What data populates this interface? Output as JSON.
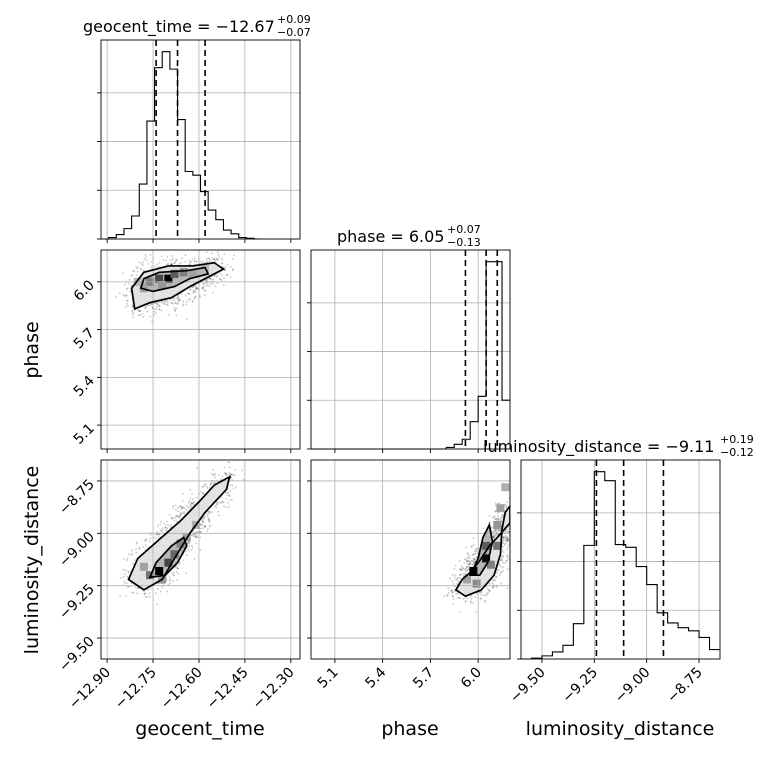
{
  "chart_data": {
    "type": "corner",
    "parameters": [
      {
        "name": "geocent_time",
        "axis_label": "geocent_time",
        "title_main": "geocent_time = −12.67",
        "title_plus": "+0.09",
        "title_minus": "−0.07",
        "range": [
          -12.92,
          -12.27
        ],
        "ticks": [
          -12.9,
          -12.75,
          -12.6,
          -12.45,
          -12.3
        ],
        "tick_labels": [
          "−12.90",
          "−12.75",
          "−12.60",
          "−12.45",
          "−12.30"
        ],
        "quantiles": [
          -12.74,
          -12.67,
          -12.58
        ],
        "hist_edges": [
          -12.92,
          -12.895,
          -12.87,
          -12.845,
          -12.82,
          -12.795,
          -12.77,
          -12.745,
          -12.72,
          -12.695,
          -12.67,
          -12.645,
          -12.62,
          -12.595,
          -12.57,
          -12.545,
          -12.52,
          -12.495,
          -12.47,
          -12.445,
          -12.42,
          -12.395
        ],
        "hist_counts": [
          0,
          4,
          12,
          28,
          62,
          148,
          318,
          462,
          505,
          458,
          322,
          182,
          172,
          128,
          78,
          52,
          24,
          14,
          4,
          2,
          0
        ]
      },
      {
        "name": "phase",
        "axis_label": "phase",
        "title_main": "phase = 6.05",
        "title_plus": "+0.07",
        "title_minus": "−0.13",
        "range": [
          4.95,
          6.2
        ],
        "ticks": [
          5.1,
          5.4,
          5.7,
          6.0
        ],
        "tick_labels": [
          "5.1",
          "5.4",
          "5.7",
          "6.0"
        ],
        "quantiles": [
          5.92,
          6.05,
          6.12
        ],
        "hist_edges": [
          4.95,
          5.0,
          5.05,
          5.1,
          5.15,
          5.2,
          5.25,
          5.3,
          5.35,
          5.4,
          5.45,
          5.5,
          5.55,
          5.6,
          5.65,
          5.7,
          5.75,
          5.8,
          5.85,
          5.9,
          5.95,
          6.0,
          6.05,
          6.1,
          6.15,
          6.2
        ],
        "hist_counts": [
          0,
          0,
          0,
          0,
          0,
          0,
          0,
          0,
          0,
          0,
          0,
          0,
          0,
          0,
          0,
          0,
          0,
          4,
          12,
          25,
          70,
          135,
          480,
          480,
          125
        ]
      },
      {
        "name": "luminosity_distance",
        "axis_label": "luminosity_distance",
        "title_main": "luminosity_distance = −9.11",
        "title_plus": "+0.19",
        "title_minus": "−0.12",
        "range": [
          -9.6,
          -8.65
        ],
        "ticks": [
          -9.5,
          -9.25,
          -9.0,
          -8.75
        ],
        "tick_labels": [
          "−9.50",
          "−9.25",
          "−9.00",
          "−8.75"
        ],
        "quantiles": [
          -9.24,
          -9.11,
          -8.92
        ],
        "hist_edges": [
          -9.6,
          -9.55,
          -9.5,
          -9.45,
          -9.4,
          -9.35,
          -9.3,
          -9.25,
          -9.2,
          -9.15,
          -9.1,
          -9.05,
          -9.0,
          -8.95,
          -8.9,
          -8.85,
          -8.8,
          -8.75,
          -8.7,
          -8.65
        ],
        "hist_counts": [
          0,
          2,
          8,
          18,
          35,
          90,
          290,
          478,
          455,
          292,
          285,
          236,
          190,
          118,
          92,
          80,
          72,
          55,
          24
        ]
      }
    ],
    "pairs": [
      {
        "x": "geocent_time",
        "y": "phase",
        "mode": [
          -12.7,
          6.02
        ],
        "density_cells": [
          [
            -12.7,
            6.02,
            1.0
          ],
          [
            -12.73,
            6.02,
            0.7
          ],
          [
            -12.68,
            6.05,
            0.6
          ],
          [
            -12.76,
            6.0,
            0.45
          ],
          [
            -12.65,
            6.06,
            0.45
          ],
          [
            -12.78,
            5.96,
            0.3
          ],
          [
            -12.62,
            6.05,
            0.3
          ],
          [
            -12.72,
            5.98,
            0.35
          ],
          [
            -12.58,
            6.08,
            0.2
          ],
          [
            -12.8,
            6.0,
            0.2
          ]
        ],
        "contours": [
          [
            [
              -12.79,
              5.96
            ],
            [
              -12.78,
              6.02
            ],
            [
              -12.73,
              6.06
            ],
            [
              -12.64,
              6.07
            ],
            [
              -12.58,
              6.09
            ],
            [
              -12.57,
              6.05
            ],
            [
              -12.63,
              6.02
            ],
            [
              -12.68,
              5.97
            ],
            [
              -12.75,
              5.94
            ],
            [
              -12.79,
              5.96
            ]
          ],
          [
            [
              -12.81,
              5.83
            ],
            [
              -12.82,
              5.96
            ],
            [
              -12.78,
              6.06
            ],
            [
              -12.7,
              6.1
            ],
            [
              -12.62,
              6.1
            ],
            [
              -12.55,
              6.12
            ],
            [
              -12.52,
              6.08
            ],
            [
              -12.57,
              6.03
            ],
            [
              -12.63,
              5.97
            ],
            [
              -12.69,
              5.9
            ],
            [
              -12.76,
              5.87
            ],
            [
              -12.81,
              5.83
            ]
          ]
        ]
      },
      {
        "x": "geocent_time",
        "y": "luminosity_distance",
        "mode": [
          -12.73,
          -9.18
        ],
        "density_cells": [
          [
            -12.73,
            -9.18,
            1.0
          ],
          [
            -12.7,
            -9.14,
            0.7
          ],
          [
            -12.68,
            -9.1,
            0.55
          ],
          [
            -12.76,
            -9.2,
            0.5
          ],
          [
            -12.66,
            -9.05,
            0.45
          ],
          [
            -12.72,
            -9.22,
            0.35
          ],
          [
            -12.64,
            -9.02,
            0.3
          ],
          [
            -12.61,
            -8.96,
            0.25
          ],
          [
            -12.78,
            -9.16,
            0.3
          ]
        ],
        "contours": [
          [
            [
              -12.76,
              -9.21
            ],
            [
              -12.74,
              -9.14
            ],
            [
              -12.69,
              -9.06
            ],
            [
              -12.65,
              -9.02
            ],
            [
              -12.64,
              -9.06
            ],
            [
              -12.67,
              -9.14
            ],
            [
              -12.71,
              -9.2
            ],
            [
              -12.76,
              -9.21
            ]
          ],
          [
            [
              -12.83,
              -9.22
            ],
            [
              -12.8,
              -9.12
            ],
            [
              -12.73,
              -9.03
            ],
            [
              -12.66,
              -8.94
            ],
            [
              -12.6,
              -8.85
            ],
            [
              -12.55,
              -8.77
            ],
            [
              -12.5,
              -8.73
            ],
            [
              -12.51,
              -8.79
            ],
            [
              -12.58,
              -8.9
            ],
            [
              -12.63,
              -9.0
            ],
            [
              -12.68,
              -9.12
            ],
            [
              -12.72,
              -9.22
            ],
            [
              -12.78,
              -9.27
            ],
            [
              -12.83,
              -9.22
            ]
          ]
        ]
      },
      {
        "x": "phase",
        "y": "luminosity_distance",
        "mode": [
          6.05,
          -9.12
        ],
        "density_cells": [
          [
            5.97,
            -9.18,
            1.0
          ],
          [
            6.05,
            -9.12,
            0.95
          ],
          [
            6.05,
            -9.06,
            0.6
          ],
          [
            6.12,
            -9.06,
            0.5
          ],
          [
            6.08,
            -9.15,
            0.45
          ],
          [
            5.99,
            -9.24,
            0.4
          ],
          [
            6.12,
            -8.96,
            0.35
          ],
          [
            6.14,
            -8.88,
            0.3
          ],
          [
            6.17,
            -8.78,
            0.25
          ],
          [
            5.93,
            -9.22,
            0.3
          ]
        ],
        "contours": [
          [
            [
              5.95,
              -9.2
            ],
            [
              6.01,
              -9.2
            ],
            [
              6.06,
              -9.14
            ],
            [
              6.09,
              -9.04
            ],
            [
              6.07,
              -8.96
            ],
            [
              6.03,
              -9.02
            ],
            [
              6.0,
              -9.12
            ],
            [
              5.95,
              -9.2
            ]
          ],
          [
            [
              5.86,
              -9.27
            ],
            [
              5.92,
              -9.3
            ],
            [
              6.02,
              -9.27
            ],
            [
              6.1,
              -9.2
            ],
            [
              6.14,
              -9.1
            ],
            [
              6.15,
              -8.98
            ],
            [
              6.17,
              -8.9
            ],
            [
              6.2,
              -8.87
            ],
            [
              6.2,
              -8.95
            ],
            [
              6.12,
              -9.02
            ],
            [
              6.07,
              -9.06
            ],
            [
              6.02,
              -9.12
            ],
            [
              5.96,
              -9.18
            ],
            [
              5.9,
              -9.22
            ],
            [
              5.86,
              -9.27
            ]
          ]
        ]
      }
    ]
  }
}
